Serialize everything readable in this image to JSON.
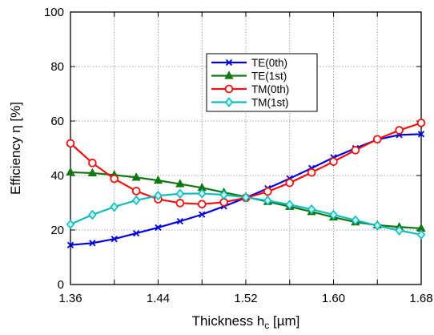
{
  "chart_data": {
    "type": "line",
    "xlabel": "Thickness h",
    "xlabel_sub": "c",
    "xlabel_unit": " [µm]",
    "ylabel": "Efficiency η [%]",
    "xlim": [
      1.36,
      1.68
    ],
    "ylim": [
      0,
      100
    ],
    "x_ticks": [
      1.36,
      1.44,
      1.52,
      1.6,
      1.68
    ],
    "x_tick_labels": [
      "1.36",
      "1.44",
      "1.52",
      "1.60",
      "1.68"
    ],
    "y_ticks": [
      0,
      20,
      40,
      60,
      80,
      100
    ],
    "y_tick_labels": [
      "0",
      "20",
      "40",
      "60",
      "80",
      "100"
    ],
    "grid": true,
    "legend_position": "upper-middle",
    "x": [
      1.36,
      1.38,
      1.4,
      1.42,
      1.44,
      1.46,
      1.48,
      1.5,
      1.52,
      1.54,
      1.56,
      1.58,
      1.6,
      1.62,
      1.64,
      1.66,
      1.68
    ],
    "series": [
      {
        "name": "TE(0th)",
        "color": "#0000dd",
        "marker": "x",
        "values": [
          14.5,
          15.2,
          16.7,
          18.8,
          20.9,
          23.2,
          25.7,
          28.7,
          31.8,
          35.3,
          38.9,
          42.7,
          46.6,
          50.0,
          53.2,
          54.9,
          55.2
        ]
      },
      {
        "name": "TE(1st)",
        "color": "#117711",
        "marker": "triangle",
        "values": [
          41.2,
          40.9,
          40.2,
          39.3,
          38.2,
          36.9,
          35.5,
          33.8,
          32.2,
          30.4,
          28.6,
          26.7,
          24.7,
          22.9,
          21.8,
          21.1,
          20.6
        ]
      },
      {
        "name": "TM(0th)",
        "color": "#ee1111",
        "marker": "circle",
        "values": [
          51.8,
          44.6,
          38.8,
          34.3,
          31.3,
          29.9,
          29.5,
          30.2,
          31.8,
          34.1,
          37.3,
          41.1,
          45.1,
          49.3,
          53.3,
          56.6,
          59.3
        ]
      },
      {
        "name": "TM(1st)",
        "color": "#11bbbb",
        "marker": "diamond",
        "values": [
          22.1,
          25.6,
          28.5,
          30.9,
          32.6,
          33.3,
          33.4,
          32.9,
          32.0,
          30.8,
          29.3,
          27.6,
          25.6,
          23.6,
          21.6,
          19.8,
          18.3
        ]
      }
    ]
  }
}
